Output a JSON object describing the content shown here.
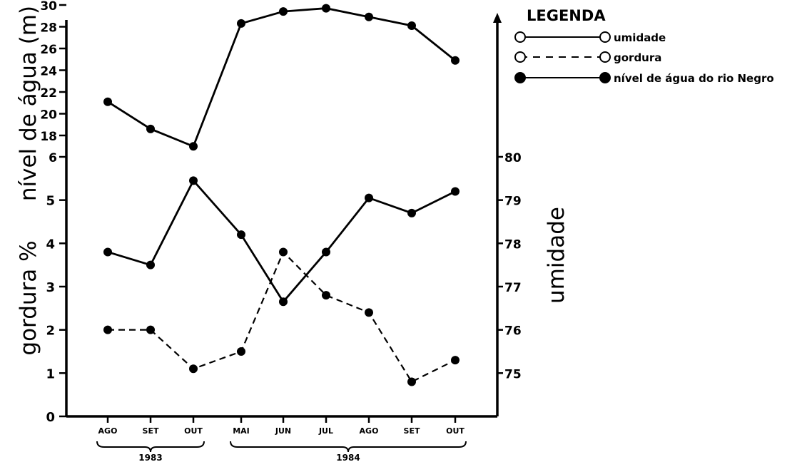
{
  "chart_data": {
    "type": "line",
    "months": [
      "AGO",
      "SET",
      "OUT",
      "MAI",
      "JUN",
      "JUL",
      "AGO",
      "SET",
      "OUT"
    ],
    "years": [
      {
        "label": "1983",
        "from": 0,
        "to": 2
      },
      {
        "label": "1984",
        "from": 3,
        "to": 8
      }
    ],
    "upper_panel": {
      "ylabel": "nível de água (m)",
      "ticks": [
        "30",
        "28",
        "26",
        "24",
        "22",
        "20",
        "18",
        "6"
      ],
      "ticks_note": "upper ticks 30 down to 18 evenly spaced; lowest tick printed as 6",
      "series": [
        {
          "name": "nível de água do rio Negro",
          "style": "solid",
          "marker": "filled",
          "values": [
            21.1,
            18.6,
            17.0,
            28.3,
            29.4,
            29.7,
            28.9,
            28.1,
            24.9
          ]
        }
      ]
    },
    "lower_panel": {
      "left_axis": {
        "label": "gordura %",
        "ticks": [
          "0",
          "1",
          "2",
          "3",
          "4",
          "5"
        ],
        "ylim": [
          0,
          6
        ]
      },
      "right_axis": {
        "label": "umidade",
        "ticks": [
          "75",
          "76",
          "77",
          "78",
          "79",
          "80"
        ],
        "ylim": [
          74,
          80
        ]
      },
      "series": [
        {
          "name": "umidade",
          "axis": "right",
          "style": "solid",
          "marker": "filled",
          "values": [
            77.8,
            77.5,
            79.45,
            78.2,
            76.65,
            77.8,
            79.05,
            78.7,
            79.2
          ]
        },
        {
          "name": "gordura",
          "axis": "left",
          "style": "dashed",
          "marker": "filled",
          "values": [
            2.0,
            2.0,
            1.1,
            1.5,
            3.8,
            2.8,
            2.4,
            0.8,
            1.3
          ]
        }
      ]
    },
    "legend": {
      "title": "LEGENDA",
      "position": "top-right",
      "items": [
        {
          "label": "umidade",
          "style": "solid",
          "marker": "open"
        },
        {
          "label": "gordura",
          "style": "dashed",
          "marker": "open"
        },
        {
          "label": "nível de água do rio Negro",
          "style": "solid",
          "marker": "filled"
        }
      ]
    }
  }
}
